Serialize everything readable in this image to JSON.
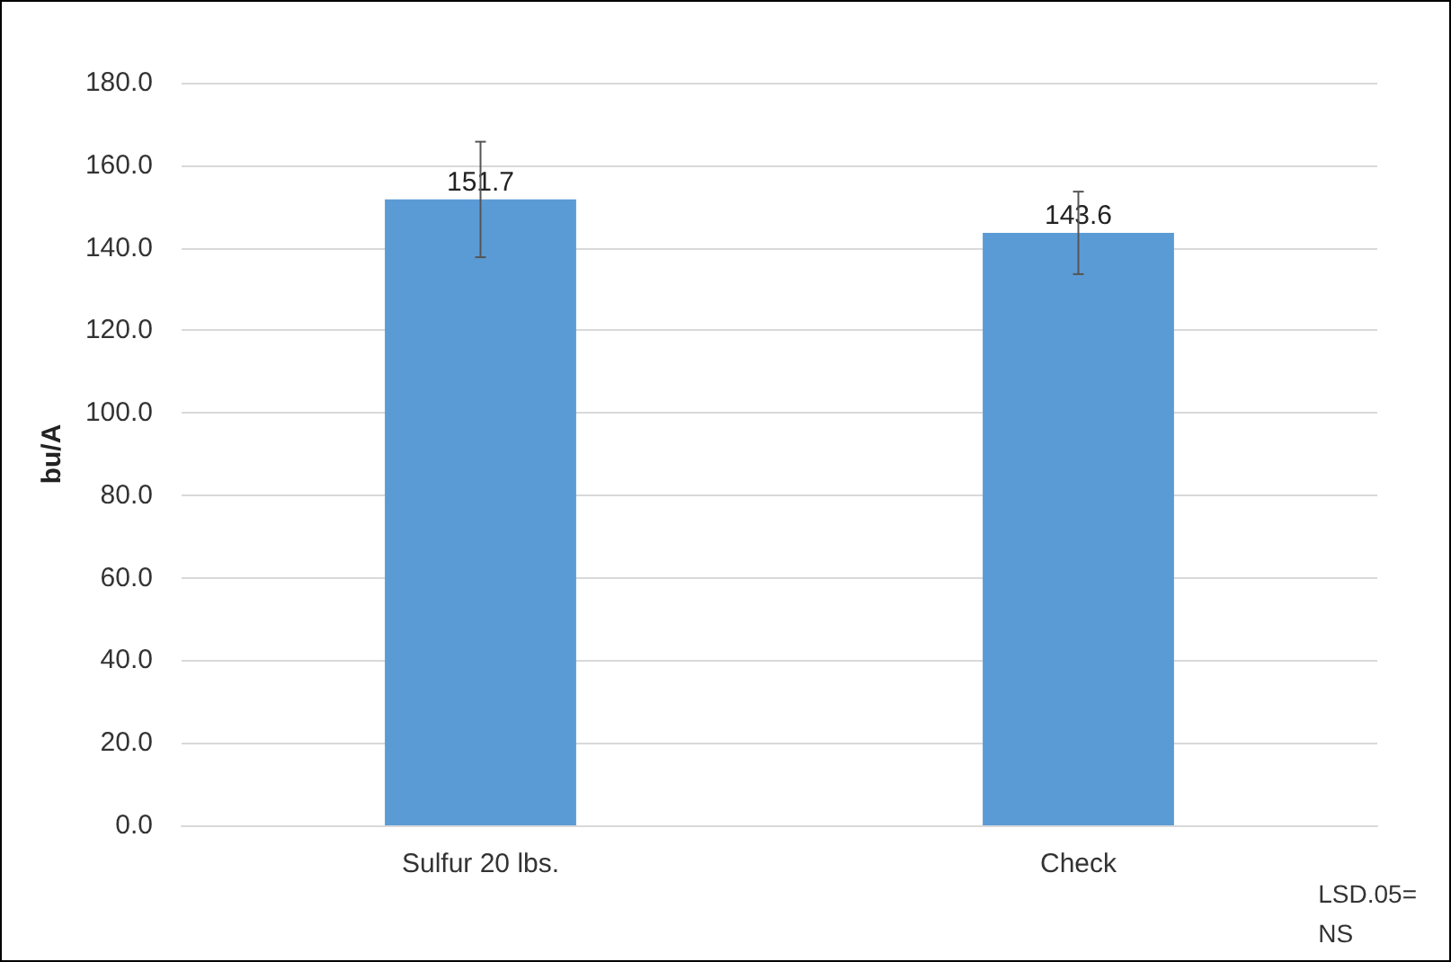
{
  "chart_data": {
    "type": "bar",
    "ylabel": "bu/A",
    "categories": [
      "Sulfur 20 lbs.",
      "Check"
    ],
    "values": [
      151.7,
      143.6
    ],
    "errors": [
      14,
      10
    ],
    "color": "#5b9bd5",
    "data_labels": true,
    "ylim": [
      0,
      180
    ],
    "yticks": [
      {
        "value": 0,
        "label": "0.0"
      },
      {
        "value": 20,
        "label": "20.0"
      },
      {
        "value": 40,
        "label": "40.0"
      },
      {
        "value": 60,
        "label": "60.0"
      },
      {
        "value": 80,
        "label": "80.0"
      },
      {
        "value": 100,
        "label": "100.0"
      },
      {
        "value": 120,
        "label": "120.0"
      },
      {
        "value": 140,
        "label": "140.0"
      },
      {
        "value": 160,
        "label": "160.0"
      },
      {
        "value": 180,
        "label": "180.0"
      }
    ],
    "grid": "y",
    "annotations": [
      "LSD.05=\nNS"
    ]
  }
}
